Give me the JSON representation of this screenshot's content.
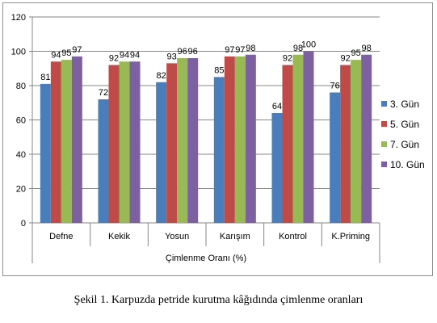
{
  "caption": "Şekil 1. Karpuzda petride kurutma kâğıdında çimlenme oranları",
  "chart_data": {
    "type": "bar",
    "categories": [
      "Defne",
      "Kekik",
      "Yosun",
      "Karışım",
      "Kontrol",
      "K.Priming"
    ],
    "series": [
      {
        "name": "3. Gün",
        "color": "#4a7ebb",
        "values": [
          81,
          72,
          82,
          85,
          64,
          76
        ]
      },
      {
        "name": "5. Gün",
        "color": "#be4b48",
        "values": [
          94,
          92,
          93,
          97,
          92,
          92
        ]
      },
      {
        "name": "7. Gün",
        "color": "#98b954",
        "values": [
          95,
          94,
          96,
          97,
          98,
          95
        ]
      },
      {
        "name": "10. Gün",
        "color": "#7d60a0",
        "values": [
          97,
          94,
          96,
          98,
          100,
          98
        ]
      }
    ],
    "data_labels": [
      [
        "81",
        "94",
        "95",
        "97"
      ],
      [
        "72",
        "92",
        "94",
        "94"
      ],
      [
        "82",
        "93",
        "96",
        "96"
      ],
      [
        "85",
        "97",
        "97",
        "98"
      ],
      [
        "64",
        "92",
        "98",
        "100"
      ],
      [
        "76",
        "92",
        "95",
        "98"
      ]
    ],
    "xlabel": "Çimlenme Oranı (%)",
    "ylabel": "",
    "ylim": [
      0,
      120
    ],
    "yticks": [
      "0",
      "20",
      "40",
      "60",
      "80",
      "100",
      "120"
    ],
    "grid": true,
    "legend_position": "right"
  }
}
